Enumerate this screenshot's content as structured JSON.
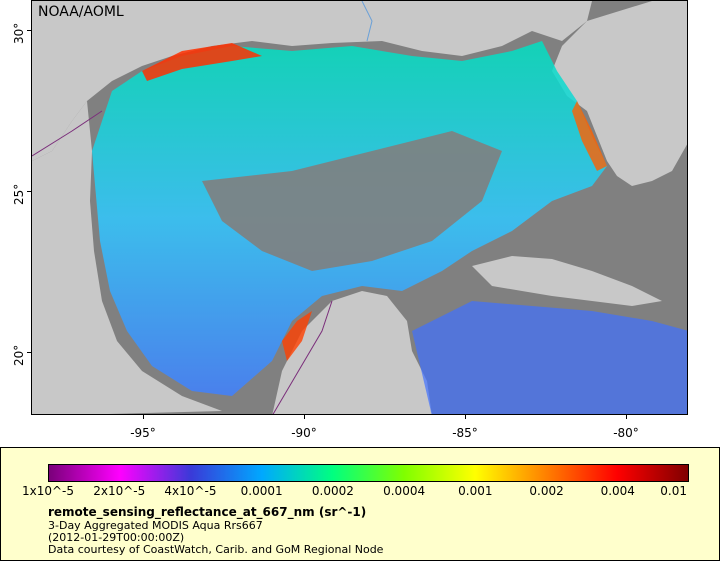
{
  "map": {
    "credit": "NOAA/AOML",
    "y_ticks": [
      "30°",
      "25°",
      "20°"
    ],
    "x_ticks": [
      "-95°",
      "-90°",
      "-85°",
      "-80°"
    ],
    "colors": {
      "land": "#c8c8c8",
      "no_data": "#808080",
      "border": "#7b2f7b",
      "river": "#6aa0d8"
    }
  },
  "legend": {
    "colorbar_ticks": [
      "1x10^-5",
      "2x10^-5",
      "4x10^-5",
      "0.0001",
      "0.0002",
      "0.0004",
      "0.001",
      "0.002",
      "0.004",
      "0.01"
    ],
    "colorbar_colors": [
      "#7a007a",
      "#ff00ff",
      "#3a3ad8",
      "#00a8ff",
      "#00ff80",
      "#80ff00",
      "#ffff00",
      "#ff8000",
      "#ff0000",
      "#800000"
    ],
    "variable": "remote_sensing_reflectance_at_667_nm (sr^-1)",
    "product": "3-Day Aggregated MODIS Aqua Rrs667",
    "date": "(2012-01-29T00:00:00Z)",
    "source": "Data courtesy of CoastWatch, Carib. and GoM Regional Node"
  }
}
